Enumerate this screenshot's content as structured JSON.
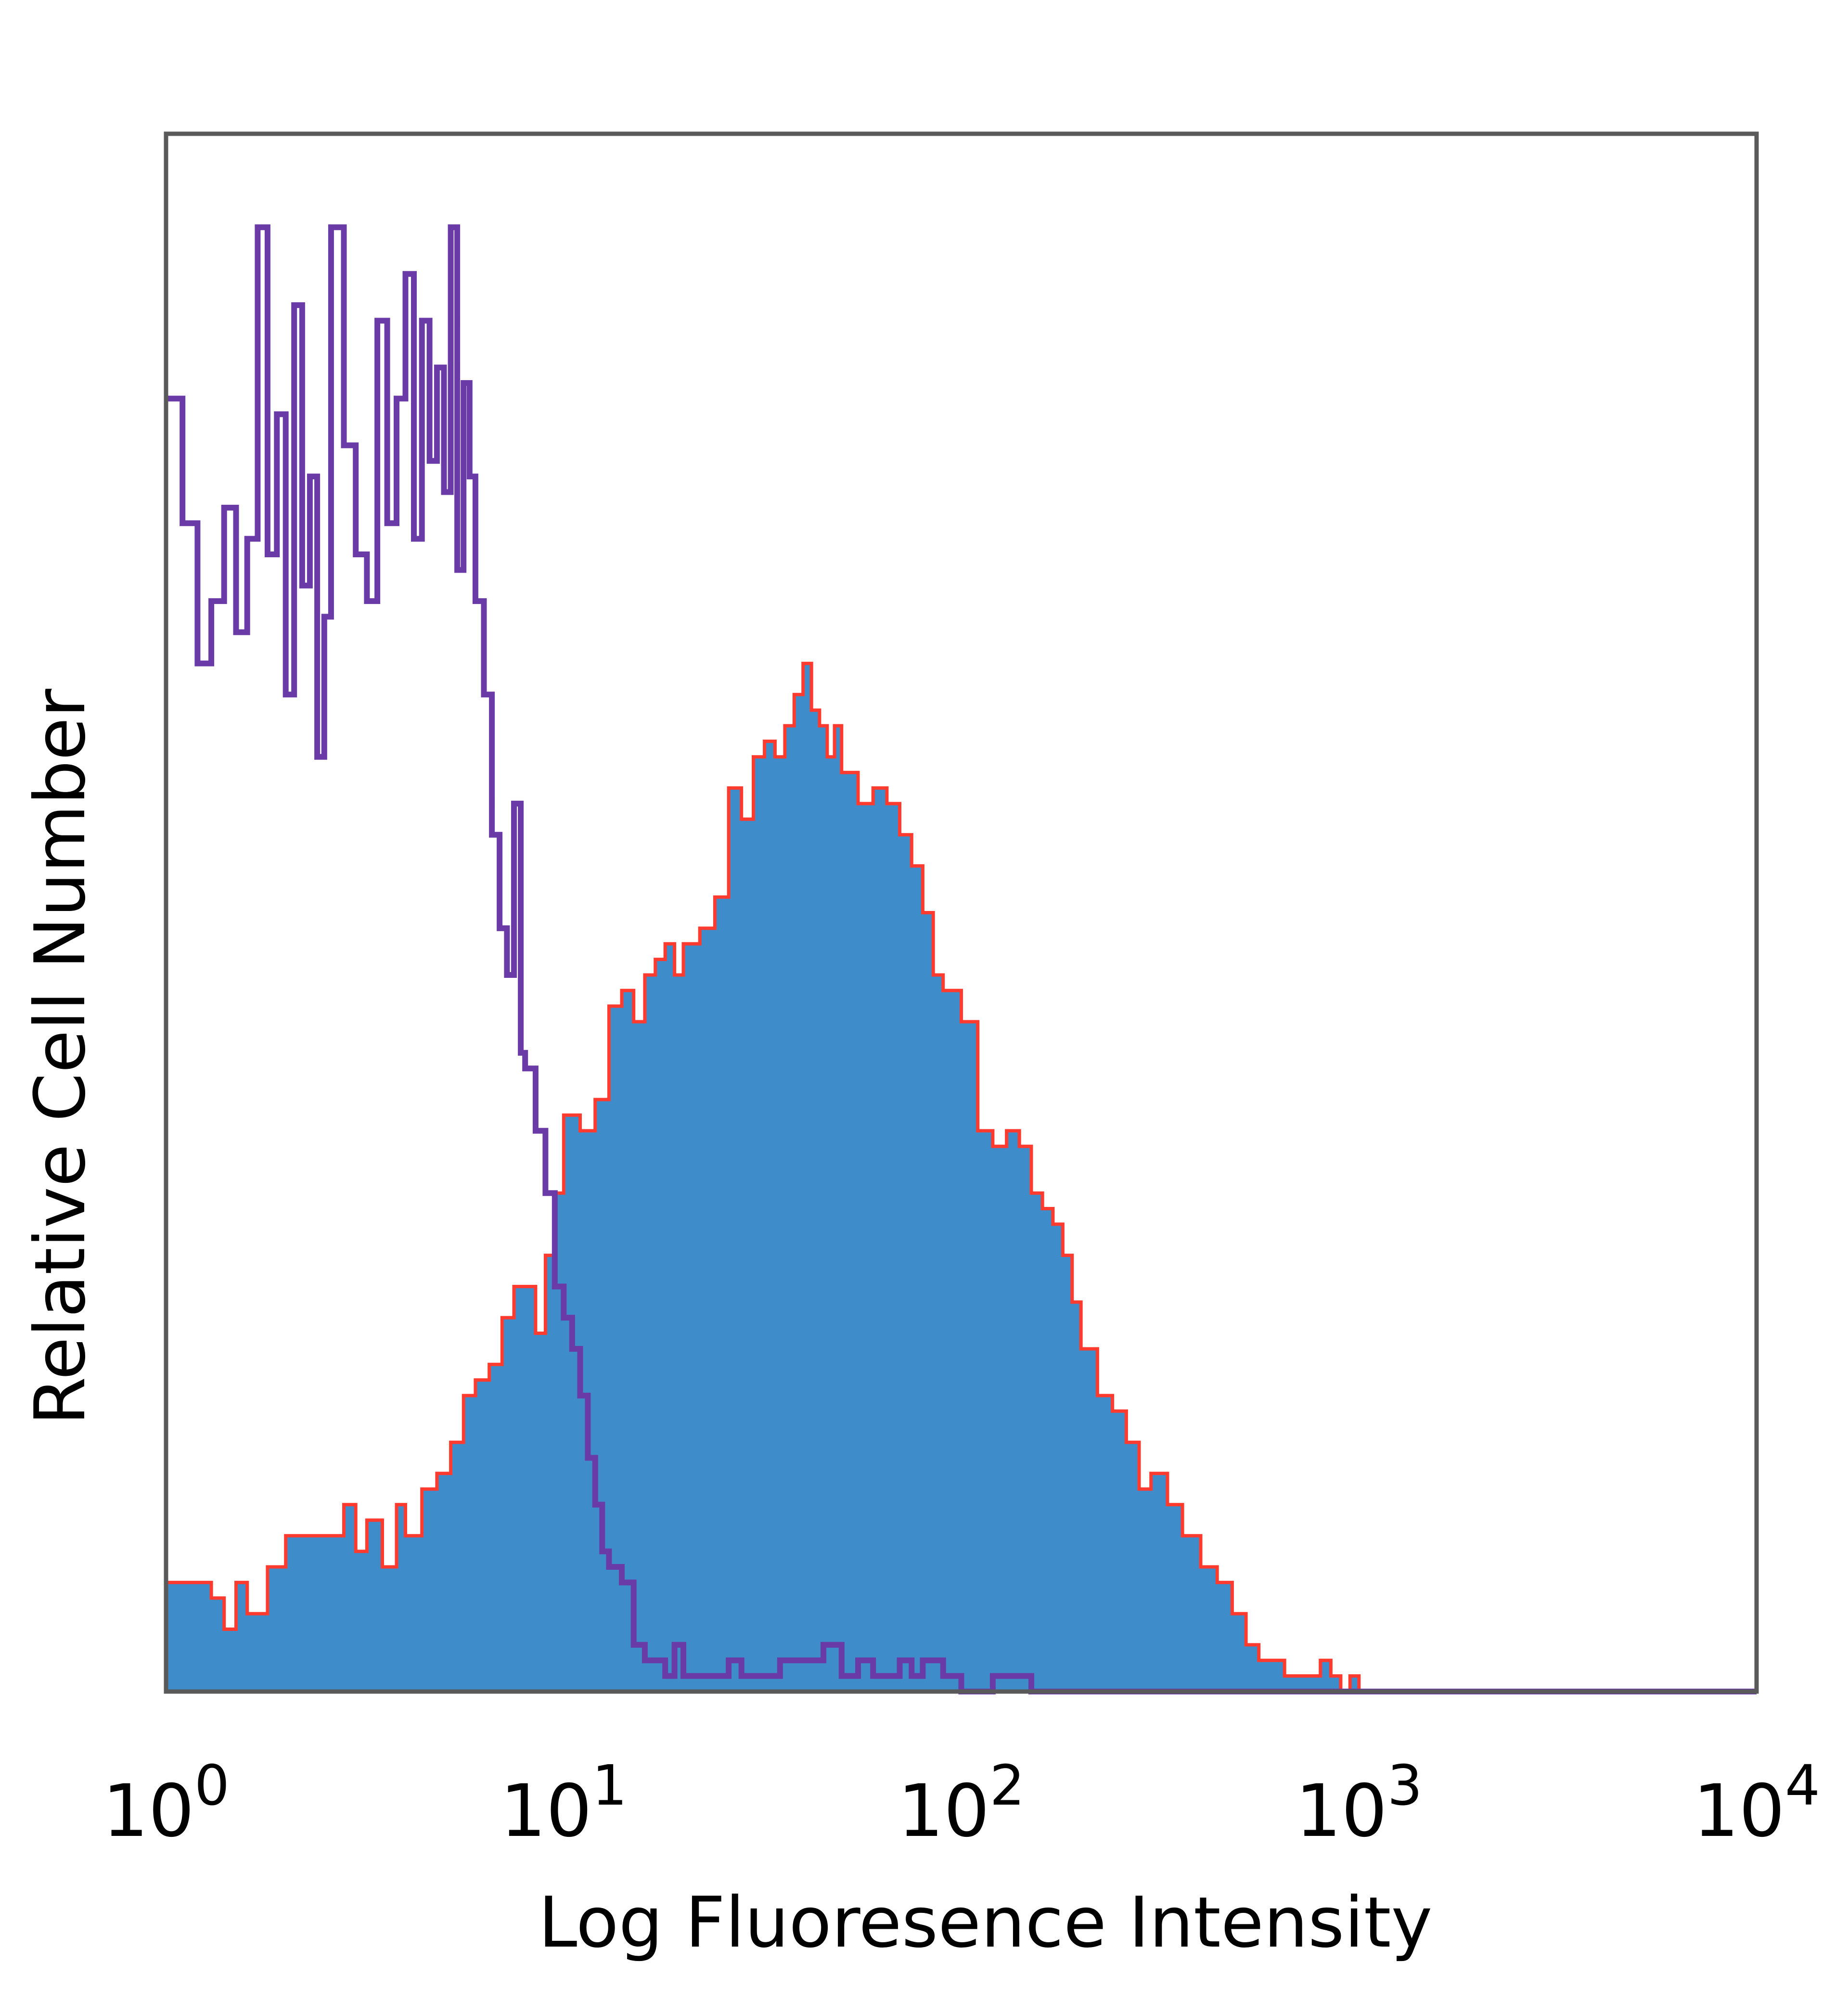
{
  "chart_data": {
    "type": "area",
    "xlabel": "Log Fluoresence Intensity",
    "ylabel": "Relative Cell Number",
    "x_scale": "log",
    "xlim": [
      1,
      10000
    ],
    "ylim": [
      0,
      100
    ],
    "grid": false,
    "legend": "none",
    "x_ticks": [
      {
        "base": "10",
        "exp": "0",
        "value": 1
      },
      {
        "base": "10",
        "exp": "1",
        "value": 10
      },
      {
        "base": "10",
        "exp": "2",
        "value": 100
      },
      {
        "base": "10",
        "exp": "3",
        "value": 1000
      },
      {
        "base": "10",
        "exp": "4",
        "value": 10000
      }
    ],
    "series": [
      {
        "style": "filled",
        "fill": "#3f8ccb",
        "edge": "#ff3b30",
        "x": [
          1.0,
          1.1,
          1.2,
          1.3,
          1.4,
          1.5,
          1.6,
          1.8,
          2.0,
          2.2,
          2.4,
          2.6,
          2.8,
          3.0,
          3.2,
          3.5,
          3.8,
          4.0,
          4.4,
          4.8,
          5.2,
          5.6,
          6.0,
          6.5,
          7.0,
          7.5,
          8.0,
          8.5,
          9.0,
          9.5,
          10,
          11,
          12,
          13,
          14,
          15,
          16,
          17,
          18,
          19,
          20,
          22,
          24,
          26,
          28,
          30,
          32,
          34,
          36,
          38,
          40,
          42,
          44,
          46,
          48,
          50,
          55,
          60,
          65,
          70,
          75,
          80,
          85,
          90,
          95,
          100,
          110,
          120,
          130,
          140,
          150,
          160,
          170,
          180,
          190,
          200,
          220,
          240,
          260,
          280,
          300,
          330,
          360,
          400,
          440,
          480,
          520,
          560,
          600,
          650,
          700,
          750,
          800,
          850,
          900,
          950,
          1000
        ],
        "y": [
          7,
          7,
          7,
          6,
          4,
          7,
          5,
          8,
          10,
          10,
          10,
          10,
          12,
          9,
          11,
          8,
          12,
          10,
          13,
          14,
          16,
          19,
          20,
          21,
          24,
          26,
          26,
          23,
          28,
          32,
          37,
          36,
          38,
          44,
          45,
          43,
          46,
          47,
          48,
          46,
          48,
          49,
          51,
          58,
          56,
          60,
          61,
          60,
          62,
          64,
          66,
          63,
          62,
          60,
          62,
          59,
          57,
          58,
          57,
          55,
          53,
          50,
          46,
          45,
          45,
          43,
          36,
          35,
          36,
          35,
          32,
          31,
          30,
          28,
          25,
          22,
          19,
          18,
          16,
          13,
          14,
          12,
          10,
          8,
          7,
          5,
          3,
          2,
          2,
          1,
          1,
          1,
          2,
          1,
          0,
          1,
          0
        ]
      },
      {
        "style": "line",
        "color": "#6a3aa6",
        "x": [
          1.0,
          1.1,
          1.2,
          1.3,
          1.4,
          1.5,
          1.6,
          1.7,
          1.8,
          1.9,
          2.0,
          2.1,
          2.2,
          2.3,
          2.4,
          2.5,
          2.6,
          2.8,
          3.0,
          3.2,
          3.4,
          3.6,
          3.8,
          4.0,
          4.2,
          4.4,
          4.6,
          4.8,
          5.0,
          5.2,
          5.4,
          5.6,
          5.8,
          6.0,
          6.3,
          6.6,
          6.9,
          7.2,
          7.5,
          7.8,
          8.0,
          8.5,
          9.0,
          9.5,
          10,
          10.5,
          11,
          11.5,
          12,
          12.5,
          13,
          13.5,
          14,
          15,
          16,
          17,
          18,
          19,
          20,
          22,
          24,
          26,
          28,
          30,
          35,
          40,
          45,
          50,
          55,
          60,
          65,
          70,
          75,
          80,
          90,
          100,
          120,
          150,
          200,
          300,
          500,
          1000,
          2000,
          5000,
          10000
        ],
        "y": [
          83,
          75,
          66,
          70,
          76,
          68,
          74,
          94,
          73,
          82,
          64,
          89,
          71,
          78,
          60,
          69,
          94,
          80,
          73,
          70,
          88,
          75,
          83,
          91,
          74,
          88,
          79,
          85,
          77,
          94,
          72,
          84,
          78,
          70,
          64,
          55,
          49,
          46,
          57,
          41,
          40,
          36,
          32,
          26,
          24,
          22,
          19,
          15,
          12,
          9,
          8,
          8,
          7,
          3,
          2,
          2,
          1,
          3,
          1,
          1,
          1,
          2,
          1,
          1,
          2,
          2,
          3,
          1,
          2,
          1,
          1,
          2,
          1,
          2,
          1,
          0,
          1,
          0,
          0,
          0,
          0,
          0,
          0,
          0,
          0
        ]
      }
    ]
  }
}
